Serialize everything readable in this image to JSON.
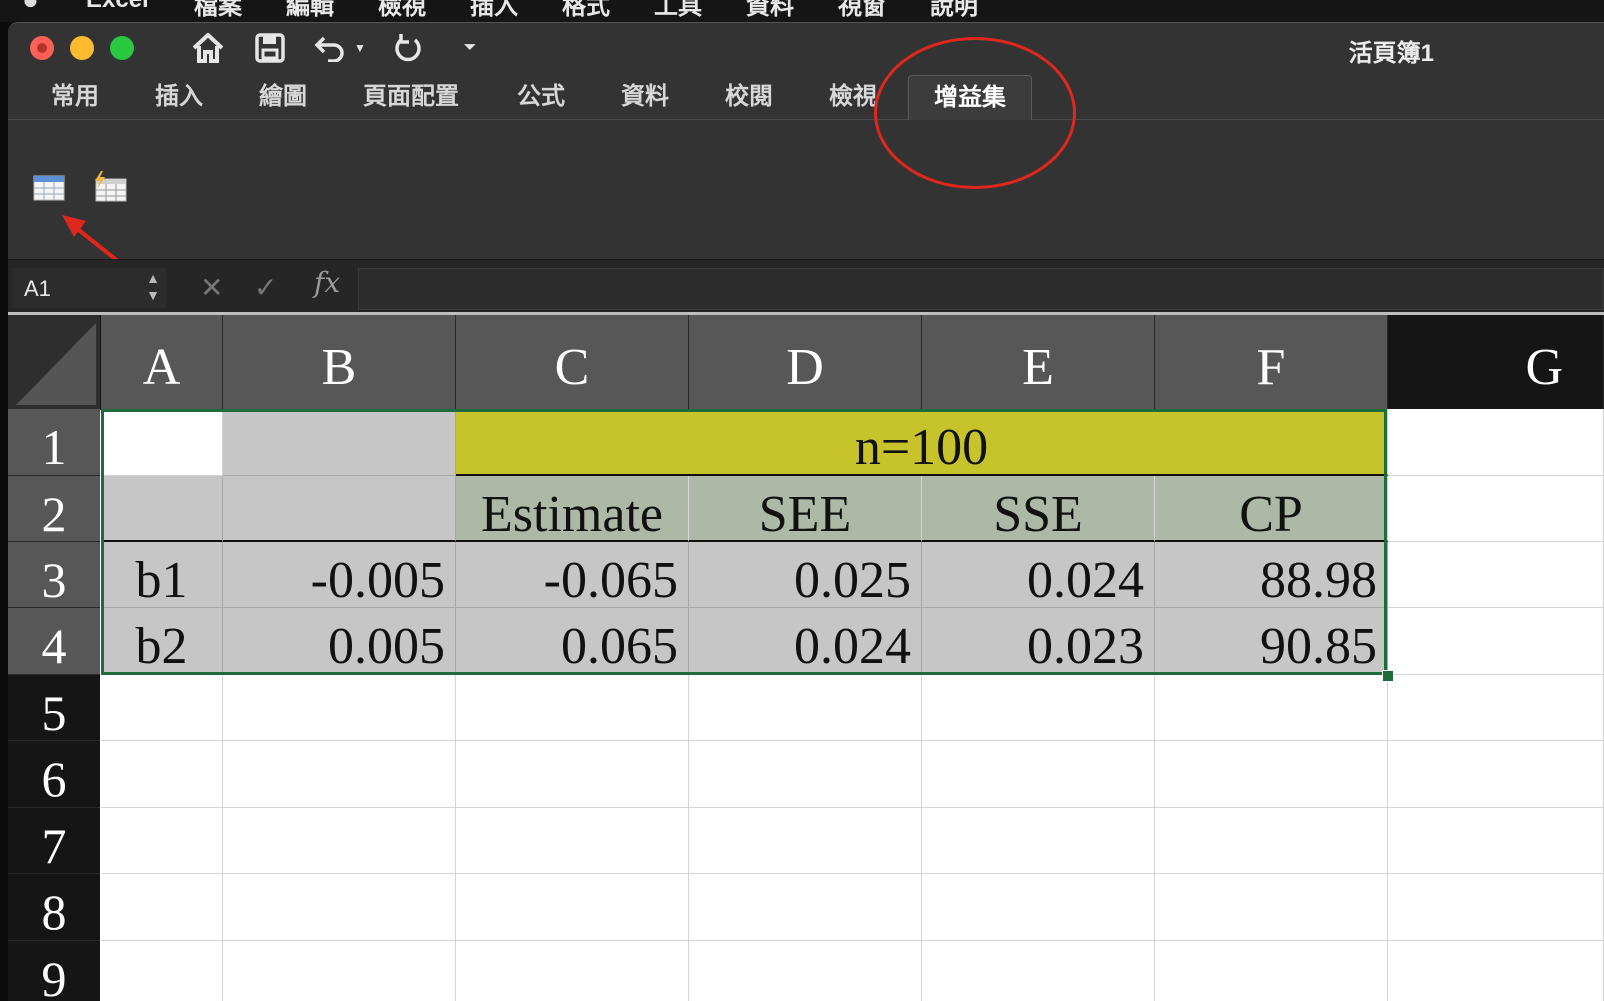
{
  "menubar": {
    "apple_icon": "apple-logo-icon",
    "items": [
      "Excel",
      "檔案",
      "編輯",
      "檢視",
      "插入",
      "格式",
      "工具",
      "資料",
      "視窗",
      "說明"
    ]
  },
  "window": {
    "title": "活頁簿1",
    "traffic_lights": [
      "close",
      "minimize",
      "zoom"
    ]
  },
  "quick_access": {
    "icons": [
      "home-icon",
      "save-icon",
      "undo-icon",
      "undo-dropdown-icon",
      "redo-icon",
      "customize-toolbar-icon"
    ]
  },
  "ribbon": {
    "tabs": [
      "常用",
      "插入",
      "繪圖",
      "頁面配置",
      "公式",
      "資料",
      "校閱",
      "檢視",
      "增益集"
    ],
    "active_tab": "增益集",
    "addin_buttons": [
      "table-addin-icon",
      "flash-table-addin-icon"
    ]
  },
  "formula_bar": {
    "name_box": "A1",
    "cancel": "✕",
    "confirm": "✓",
    "fx": "fx",
    "value": ""
  },
  "sheet": {
    "columns": [
      "A",
      "B",
      "C",
      "D",
      "E",
      "F",
      "G"
    ],
    "rows": [
      "1",
      "2",
      "3",
      "4",
      "5",
      "6",
      "7",
      "8",
      "9"
    ],
    "header_title": "n=100",
    "subheaders": [
      "Estimate",
      "SEE",
      "SSE",
      "CP"
    ],
    "data_rows": [
      {
        "label": "b1",
        "b": "-0.005",
        "c": "-0.065",
        "d": "0.025",
        "e": "0.024",
        "f": "88.98"
      },
      {
        "label": "b2",
        "b": "0.005",
        "c": "0.065",
        "d": "0.024",
        "e": "0.023",
        "f": "90.85"
      }
    ]
  },
  "annotations": {
    "color": "#e0271d",
    "circle_target": "增益集 tab",
    "arrow_target": "table add-in button"
  },
  "colors": {
    "header_olive": "#c7c32b",
    "subheader_sage": "#adb8a6",
    "table_gray": "#c6c6c6",
    "selection_green": "#1e6b3b"
  }
}
